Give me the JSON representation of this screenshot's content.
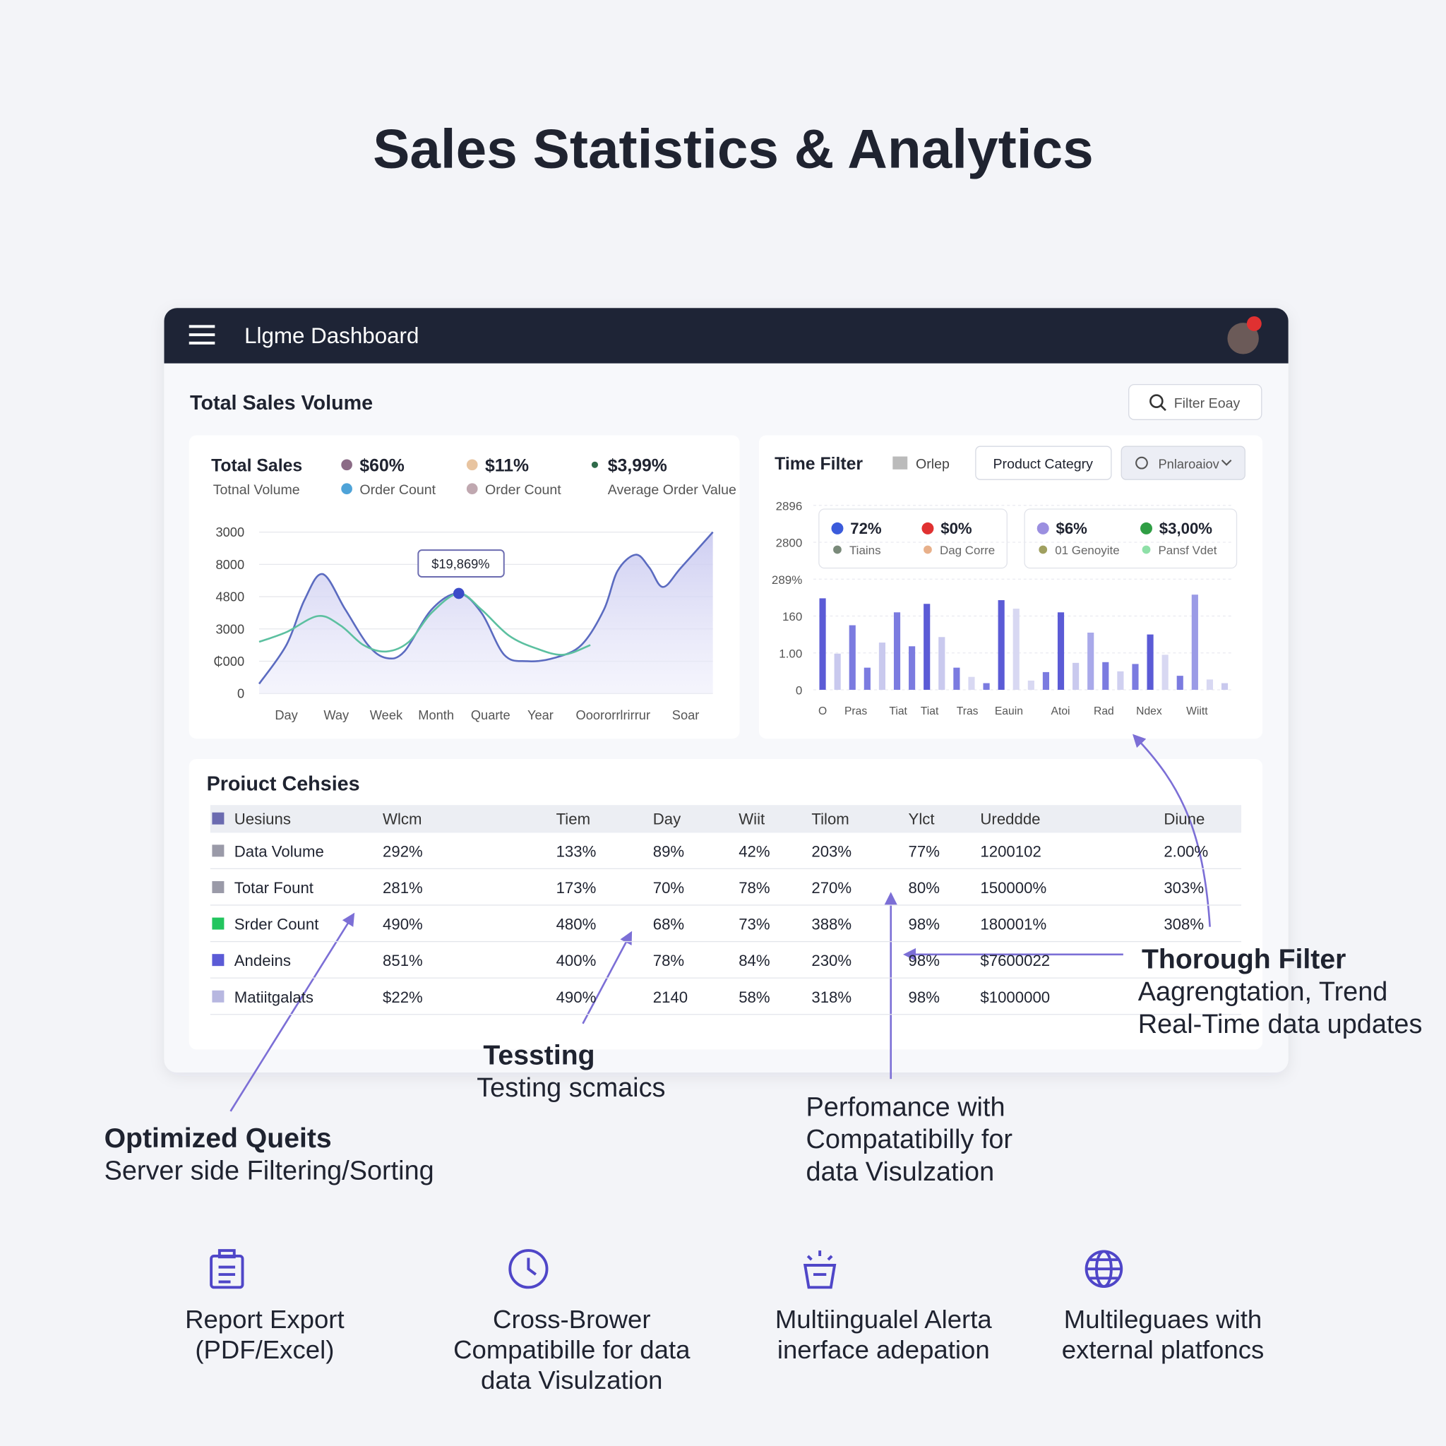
{
  "title": "Sales Statistics & Analytics",
  "dashboard": {
    "app_title": "Llgme Dashboard",
    "section_title": "Total Sales Volume",
    "filter_button": "Filter Eoay",
    "sales_panel": {
      "stats": [
        {
          "value": "Total Sales",
          "label": "Totnal Volume"
        },
        {
          "value": "$60%",
          "label": "Order Count",
          "color": "#8b6b86",
          "sub_color": "#4ea3d8"
        },
        {
          "value": "$11%",
          "label": "Order Count",
          "color": "#e8c4a0",
          "sub_color": "#c0a8b0"
        },
        {
          "value": "$3,99%",
          "label": "Average Order Value",
          "color": "#2f6b4a"
        }
      ],
      "chart": {
        "type": "line",
        "ylim": [
          0,
          5
        ],
        "yticks": [
          0,
          {
            "value": 1,
            "label": "₵000"
          },
          {
            "value": 2,
            "label": "3000"
          },
          {
            "value": 3,
            "label": "4800"
          },
          {
            "value": 4,
            "label": "8000"
          },
          {
            "value": 5,
            "label": "3000"
          }
        ],
        "xlim": [
          0,
          100
        ],
        "xticks": [
          {
            "value": 6,
            "label": "Day"
          },
          {
            "value": 17,
            "label": "Way"
          },
          {
            "value": 28,
            "label": "Week"
          },
          {
            "value": 39,
            "label": "Month"
          },
          {
            "value": 51,
            "label": "Quarte"
          },
          {
            "value": 62,
            "label": "Year"
          },
          {
            "value": 78,
            "label": "Ooororrlrirrur"
          },
          {
            "value": 94,
            "label": "Soar"
          }
        ],
        "grid": true,
        "series": [
          {
            "color": "#5b6bc0",
            "fill": "#dcdcf5",
            "x": [
              0,
              6,
              10,
              14,
              19,
              24,
              28,
              32,
              38,
              44,
              49,
              54,
              59,
              65,
              71,
              76,
              79,
              83,
              86,
              89,
              93,
              100
            ],
            "values": [
              0.3,
              1.5,
              2.9,
              3.7,
              2.6,
              1.5,
              1.1,
              1.3,
              2.6,
              3.1,
              2.5,
              1.2,
              1.0,
              1.1,
              1.5,
              2.6,
              3.8,
              4.3,
              3.9,
              3.3,
              3.9,
              5.0
            ]
          },
          {
            "color": "#5cc0a0",
            "x": [
              0,
              6,
              13,
              18,
              23,
              28,
              33,
              38,
              44,
              49,
              55,
              61,
              67,
              73
            ],
            "values": [
              1.6,
              1.9,
              2.4,
              2.1,
              1.5,
              1.3,
              1.6,
              2.5,
              3.1,
              2.6,
              1.8,
              1.4,
              1.2,
              1.5
            ]
          }
        ],
        "tooltip": "$19,869%"
      }
    },
    "time_panel": {
      "title": "Time Filter",
      "checkbox": "Orlep",
      "category_button": "Product Categry",
      "dropdown": "Pnlaroaiov",
      "legend": [
        {
          "value": "72%",
          "label": "Tiains",
          "color": "#3b5bdb",
          "sub_color": "#7a8a7a"
        },
        {
          "value": "$0%",
          "label": "Dag Corre",
          "color": "#e03131",
          "sub_color": "#e8b08a"
        },
        {
          "value": "$6%",
          "label": "01 Genoyite",
          "color": "#9b8fe0",
          "sub_color": "#a0a060"
        },
        {
          "value": "$3,00%",
          "label": "Pansf Vdet",
          "color": "#2f9e44",
          "sub_color": "#8fe0a8"
        }
      ],
      "chart": {
        "type": "bar",
        "ylim": [
          0,
          5
        ],
        "yticks": [
          0,
          {
            "value": 1,
            "label": "1.00"
          },
          {
            "value": 2,
            "label": "160"
          },
          {
            "value": 3,
            "label": "289%"
          },
          {
            "value": 4,
            "label": "2800"
          },
          {
            "value": 5,
            "label": "2896"
          }
        ],
        "grid": true,
        "xlabels": [
          "O",
          "Pras",
          "Tiat",
          "Tiat",
          "Tras",
          "Eauin",
          "Atoi",
          "Rad",
          "Ndex",
          "Wiitt"
        ],
        "values": [
          2.48,
          0.98,
          1.75,
          0.6,
          1.28,
          2.1,
          1.18,
          2.33,
          1.43,
          0.6,
          0.35,
          0.18,
          2.43,
          2.2,
          0.25,
          0.48,
          2.1,
          0.73,
          1.55,
          0.75,
          0.5,
          0.7,
          1.5,
          0.95,
          0.38,
          2.58,
          0.28,
          0.18
        ],
        "colors": [
          "#5b5bd6",
          "#c9c9ee",
          "#7b7be0",
          "#7b7be0",
          "#c9c9ee",
          "#7b7be0",
          "#7b7be0",
          "#5b5bd6",
          "#c9c9ee",
          "#7b7be0",
          "#d8d8f2",
          "#7b7be0",
          "#5b5bd6",
          "#d8d8f2",
          "#d8d8f2",
          "#7b7be0",
          "#5b5bd6",
          "#c9c9ee",
          "#a9a9ea",
          "#7b7be0",
          "#d0d0f0",
          "#7b7be0",
          "#5b5bd6",
          "#d8d8f2",
          "#7b7be0",
          "#9b9be6",
          "#d8d8f2",
          "#c9c9ee"
        ]
      }
    },
    "table": {
      "title": "Proiuct Cehsies",
      "header_color": "#6b6bb0",
      "header": [
        "Uesiuns",
        "Wlcm",
        "Tiem",
        "Day",
        "Wiit",
        "Tilom",
        "Ylct",
        "Ureddde",
        "Diune"
      ],
      "rows": [
        {
          "color": "#9a9aa8",
          "cells": [
            "Data Volume",
            "292%",
            "133%",
            "89%",
            "42%",
            "203%",
            "77%",
            "1200102",
            "2.00%"
          ]
        },
        {
          "color": "#9a9aa8",
          "cells": [
            "Totar Fount",
            "281%",
            "173%",
            "70%",
            "78%",
            "270%",
            "80%",
            "150000%",
            "303%"
          ]
        },
        {
          "color": "#22c55e",
          "cells": [
            "Srder Count",
            "490%",
            "480%",
            "68%",
            "73%",
            "388%",
            "98%",
            "180001%",
            "308%"
          ]
        },
        {
          "color": "#5b5bd6",
          "cells": [
            "Andeins",
            "851%",
            "400%",
            "78%",
            "84%",
            "230%",
            "98%",
            "$7600022"
          ]
        },
        {
          "color": "#b7b7e0",
          "cells": [
            "Matiitgalats",
            "$22%",
            "490%",
            "2140",
            "58%",
            "318%",
            "98%",
            "$1000000"
          ]
        }
      ]
    }
  },
  "annotations": [
    {
      "title": "Thorough Filter",
      "lines": [
        "Aagrengtation, Trend",
        "Real-Time data updates"
      ]
    },
    {
      "title": "Tessting",
      "lines": [
        "Testing scmaics"
      ]
    },
    {
      "title": "Optimized Queits",
      "lines": [
        "Server side Filtering/Sorting"
      ]
    },
    {
      "lines": [
        "Perfomance with",
        "Compatatibilly for",
        "data Visulzation"
      ]
    }
  ],
  "features": [
    {
      "lines": [
        "Report Export",
        "(PDF/Excel)"
      ]
    },
    {
      "lines": [
        "Cross-Brower",
        "Compatibille for data",
        "data Visulzation"
      ]
    },
    {
      "lines": [
        "Multiingualel Alerta",
        "inerface adepation"
      ]
    },
    {
      "lines": [
        "Multileguaes with",
        "external platfoncs"
      ]
    }
  ]
}
